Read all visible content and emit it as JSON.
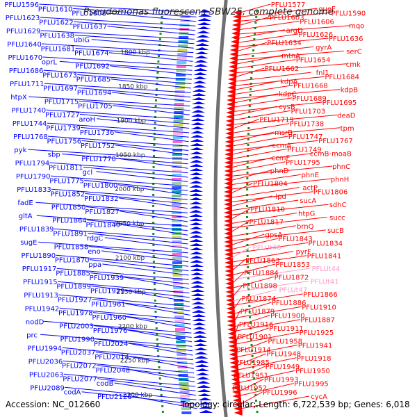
{
  "title": "Pseudomonas fluorescens SBW25, complete genome",
  "footer": {
    "accession": "Accession: NC_012660",
    "topology": "Topology: circular; Length: 6,722,539 bp; Genes: 6,018"
  },
  "colors": {
    "forward_strand": "#0000ff",
    "reverse_strand": "#ff0000",
    "trna_label": "#ff99cc",
    "backbone": "#707070",
    "tick": "#228b22"
  },
  "ticks": [
    "1800 kbp",
    "1850 kbp",
    "1900 kbp",
    "1950 kbp",
    "2000 kbp",
    "2050 kbp",
    "2100 kbp",
    "2150 kbp",
    "2200 kbp",
    "2250 kbp",
    "2300 kbp"
  ],
  "left_labels": [
    "PFLU1596",
    "PFLU1610",
    "PFLU1608",
    "PFLU1623",
    "PFLU1622",
    "PFLU1637",
    "PFLU1629",
    "PFLU1638",
    "ubiG",
    "PFLU1640",
    "PFLU1681",
    "PFLU1674",
    "PFLU1670",
    "oprL",
    "PFLU1692",
    "PFLU1686",
    "PFLU1673",
    "PFLU1685",
    "PFLU1711",
    "PFLU1697",
    "PFLU1694",
    "htpX",
    "PFLU1715",
    "PFLU1705",
    "PFLU1740",
    "PFLU1727",
    "aroH",
    "PFLU1744",
    "PFLU1739",
    "PFLU1736",
    "PFLU1768",
    "PFLU1756",
    "PFLU1752",
    "pyk",
    "sbp",
    "PFLU1770",
    "PFLU1794",
    "PFLU1811",
    "gcl",
    "PFLU1790",
    "PFLU1775",
    "PFLU1800",
    "PFLU1833",
    "PFLU1852",
    "PFLU1832",
    "fadE",
    "PFLU1850",
    "PFLU1827",
    "gltA",
    "PFLU1864",
    "PFLU1849",
    "PFLU1839",
    "PFLU1891",
    "rdgC",
    "sugE",
    "PFLU1858",
    "eno",
    "PFLU1890",
    "PFLU1870",
    "ppa",
    "PFLU1917",
    "PFLU1885",
    "PFLU1939",
    "PFLU1915",
    "PFLU1899",
    "PFLU1929",
    "PFLU1913",
    "PFLU1927",
    "PFLU1961",
    "PFLU1942",
    "PFLU1978",
    "PFLU1960",
    "nodD",
    "PFLU2003",
    "PFLU1976",
    "prc",
    "PFLU1990",
    "PFLU2024",
    "PFLU1994",
    "PFLU2037",
    "PFLU2014",
    "PFLU2036",
    "PFLU2072",
    "PFLU2048",
    "PFLU2063",
    "PFLU2077",
    "codB",
    "PFLU2089",
    "codA",
    "PFLU2126"
  ],
  "right_labels": [
    "PFLU1577",
    "queF",
    "PFLU1590",
    "PFLU1603",
    "PFLU1606",
    "mqo",
    "argD",
    "PFLU1626",
    "PFLU1636",
    "PFLU1634",
    "gyrA",
    "serC",
    "mtnA",
    "PFLU1654",
    "cmk",
    "PFLU1662",
    "fnl1",
    "PFLU1684",
    "kdpA",
    "PFLU1668",
    "kdpB",
    "kdpC",
    "PFLU1689",
    "PFLU1695",
    "cysB",
    "PFLU1703",
    "deaD",
    "PFLU1719",
    "PFLU1738",
    "tpm",
    "msrB",
    "PFLU1747",
    "PFLU1767",
    "ccmA",
    "PFLU1749",
    "ccmB-moaB",
    "ccmF",
    "PFLU1795",
    "phnC",
    "phnD",
    "phnE",
    "phnH",
    "PFLU1804",
    "actP",
    "PFLU1806",
    "lpd",
    "sucA",
    "sdhC",
    "PFLU1810",
    "htpG",
    "succ",
    "PFLU1817",
    "brnQ",
    "sucB",
    "gpsA",
    "PFLU1843",
    "PFLU1834",
    "PFLUt40",
    "pyrF",
    "PFLU1841",
    "PFLU1863",
    "PFLU1853",
    "PFLUt44",
    "PFLU1884",
    "PFLU1872",
    "PFLUt41",
    "PFLU1898",
    "PFLUt47",
    "PFLU1866",
    "PFLU1874",
    "PFLU1886",
    "PFLU1910",
    "PFLU1879",
    "PFLU1900",
    "PFLU1887",
    "PFLU1916",
    "PFLU1911",
    "PFLU1925",
    "PFLU1901",
    "PFLU1958",
    "PFLU1941",
    "PFLU1914",
    "PFLU1948",
    "PFLU1918",
    "PFLU1985",
    "PFLU1949",
    "PFLU1950",
    "PFLU1951",
    "PFLU1993",
    "PFLU1995",
    "PFLU1952",
    "PFLU1996",
    "cycA"
  ],
  "trna_labels": [
    "PFLUt40",
    "PFLUt44",
    "PFLUt41",
    "PFLUt47"
  ]
}
